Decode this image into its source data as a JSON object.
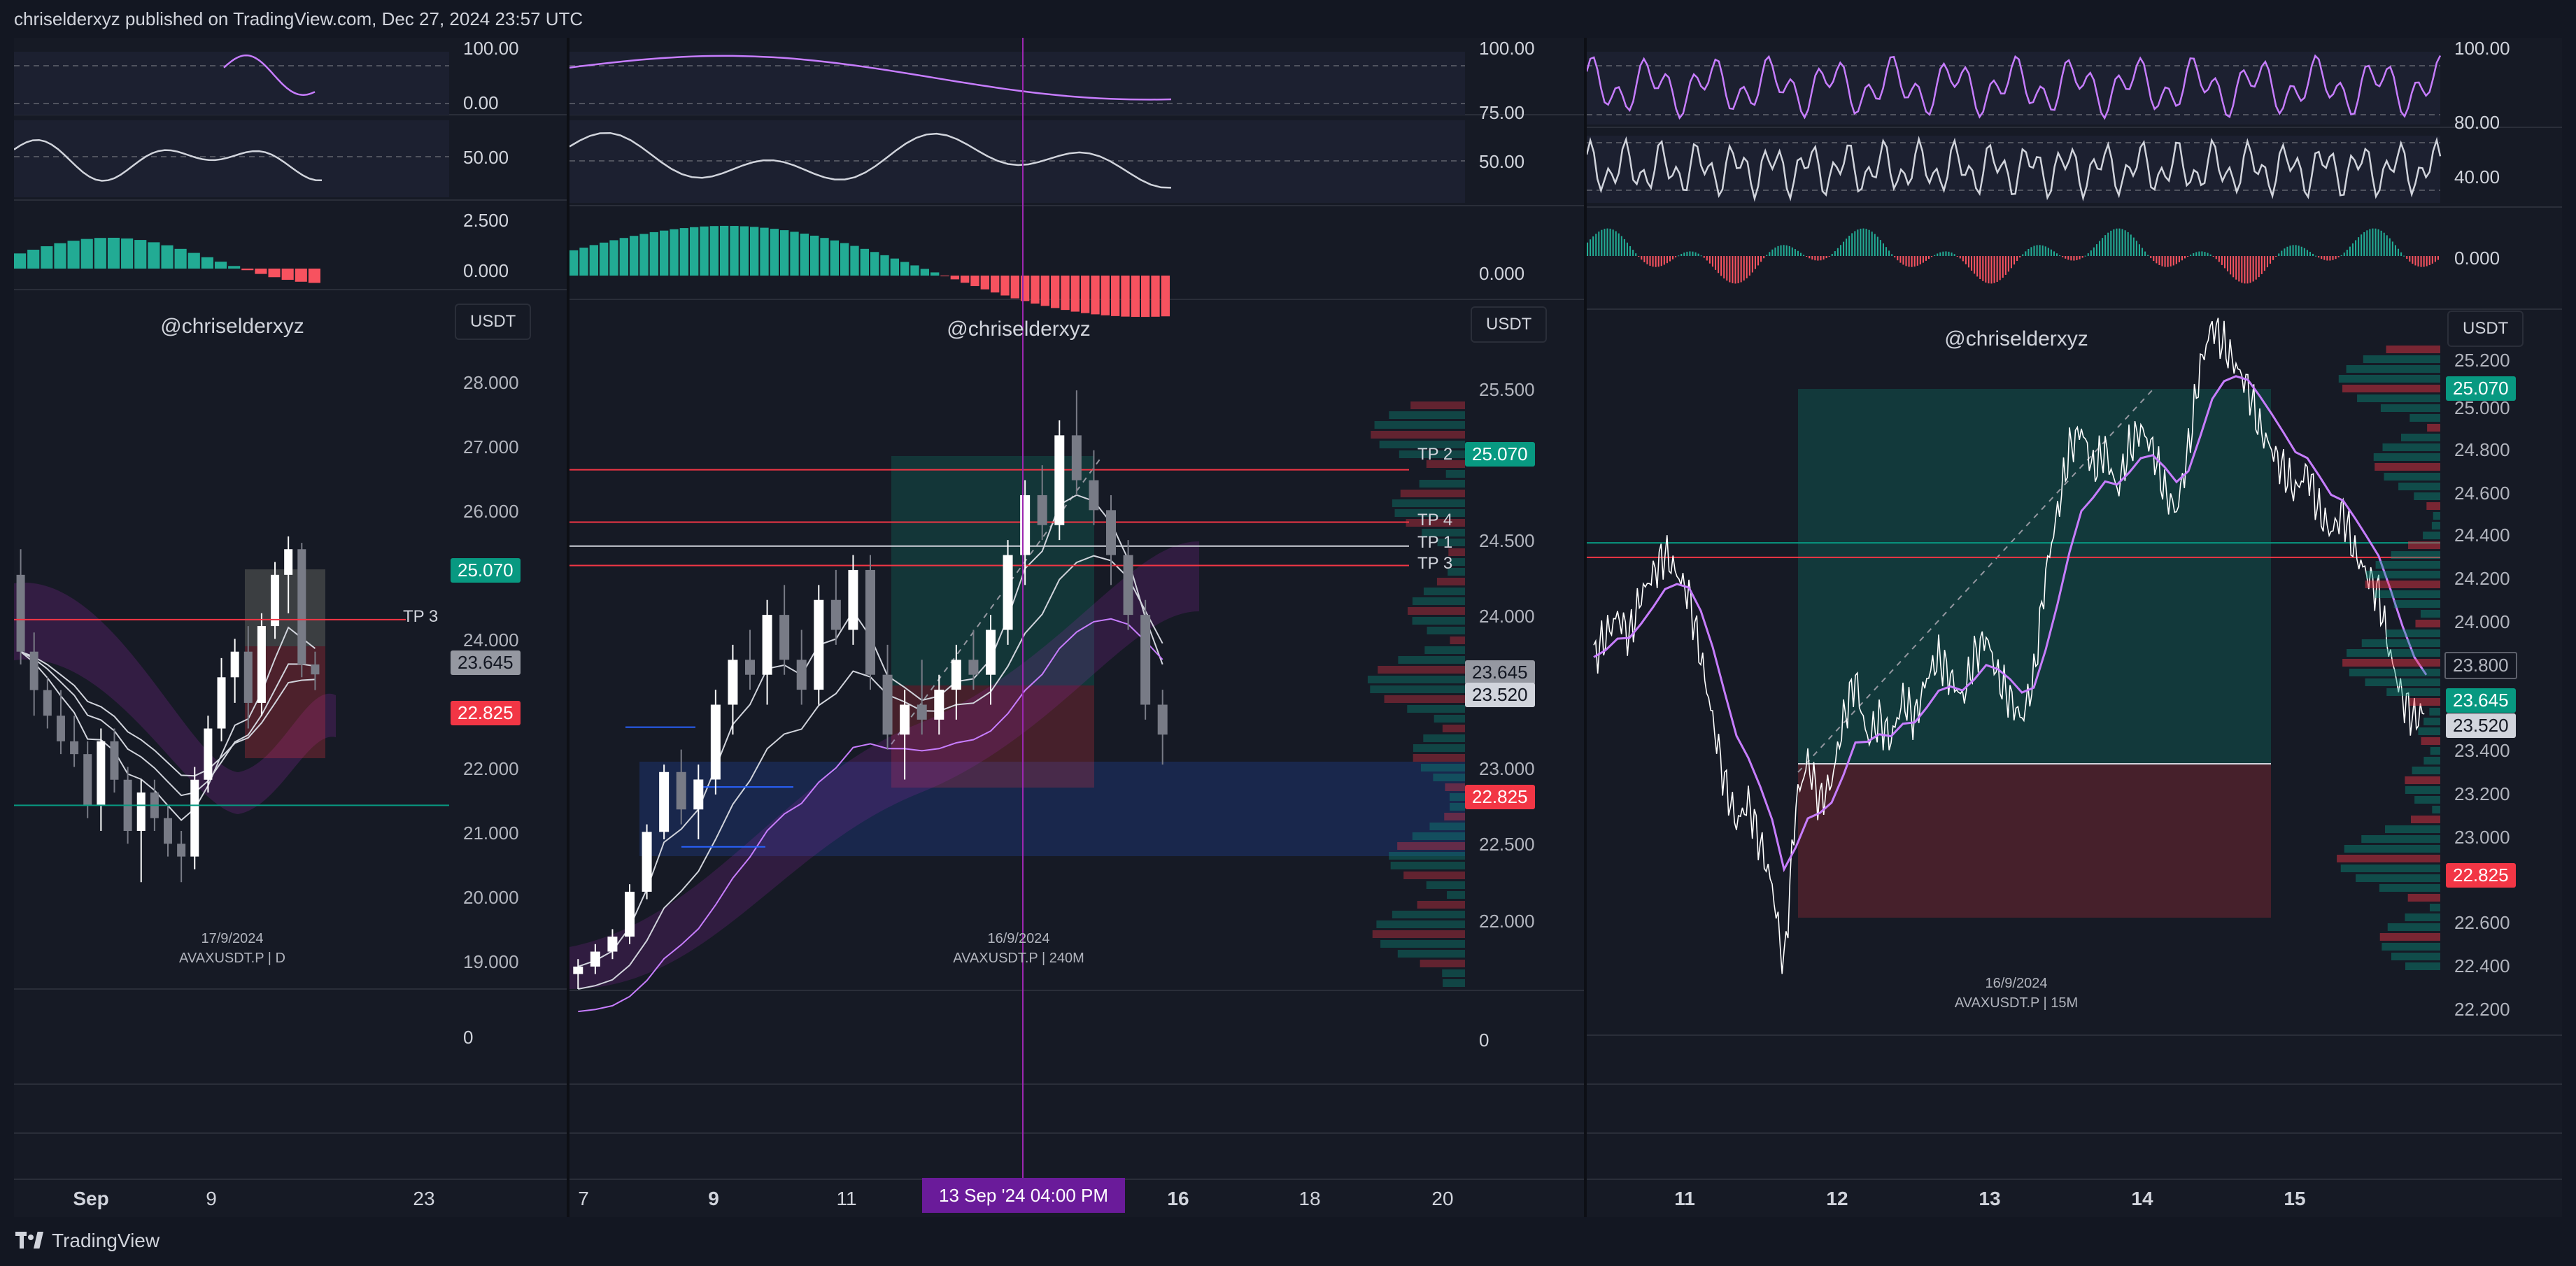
{
  "header": {
    "publisher_text": "chriselderxyz published on TradingView.com, Dec 27, 2024 23:57 UTC"
  },
  "footer": {
    "brand": "TradingView"
  },
  "colors": {
    "bull": "#089981",
    "bear": "#f23645",
    "rsi": "#c77dff",
    "background": "#131722"
  },
  "panels": [
    {
      "id": "daily",
      "watermark": "@chriselderxyz",
      "date_label": "17/9/2024",
      "symbol_label": "AVAXUSDT.P | D",
      "currency_button": "USDT",
      "osc1_levels": [
        "100.00",
        "0.00"
      ],
      "osc2_levels": [
        "50.00"
      ],
      "osc3_levels": [
        "2.500",
        "0.000"
      ],
      "price_levels": [
        "28.000",
        "27.000",
        "26.000",
        "24.000",
        "22.000",
        "21.000",
        "20.000",
        "19.000"
      ],
      "price_tags": {
        "upper": "25.070",
        "current": "23.645",
        "lower": "22.825"
      },
      "tp_labels": [
        "TP 3"
      ],
      "volume_zero": "0",
      "time_labels": [
        "Sep",
        "9",
        "23"
      ]
    },
    {
      "id": "h4",
      "watermark": "@chriselderxyz",
      "date_label": "16/9/2024",
      "symbol_label": "AVAXUSDT.P | 240M",
      "currency_button": "USDT",
      "osc1_levels": [
        "100.00",
        "75.00"
      ],
      "osc2_levels": [
        "50.00"
      ],
      "osc3_levels": [
        "0.000"
      ],
      "price_levels": [
        "25.500",
        "24.500",
        "24.000",
        "23.000",
        "22.500",
        "22.000"
      ],
      "price_tags": {
        "upper": "25.070",
        "current": "23.645",
        "second": "23.520",
        "lower": "22.825"
      },
      "tp_labels": [
        "TP 2",
        "TP 4",
        "TP 1",
        "TP 3"
      ],
      "volume_zero": "0",
      "time_labels": [
        "7",
        "9",
        "11",
        "16",
        "18",
        "20"
      ],
      "crosshair_label": "13 Sep '24   04:00 PM"
    },
    {
      "id": "m15",
      "watermark": "@chriselderxyz",
      "date_label": "16/9/2024",
      "symbol_label": "AVAXUSDT.P | 15M",
      "currency_button": "USDT",
      "osc1_levels": [
        "100.00"
      ],
      "osc2_levels": [
        "80.00",
        "40.00"
      ],
      "osc3_levels": [
        "0.000"
      ],
      "price_levels": [
        "25.200",
        "25.000",
        "24.800",
        "24.600",
        "24.400",
        "24.200",
        "24.000",
        "23.400",
        "23.200",
        "23.000",
        "22.600",
        "22.400",
        "22.200"
      ],
      "price_tags": {
        "upper": "25.070",
        "boxed": "23.800",
        "current": "23.645",
        "second": "23.520",
        "lower": "22.825"
      },
      "time_labels": [
        "11",
        "12",
        "13",
        "14",
        "15"
      ]
    }
  ],
  "chart_data": [
    {
      "type": "candlestick",
      "symbol": "AVAXUSDT.P",
      "timeframe": "D",
      "x_ticks": [
        "Sep",
        "9",
        "23"
      ],
      "ylim": [
        18.6,
        29.0
      ],
      "candles": [
        [
          25.2,
          25.6,
          23.8,
          24.0
        ],
        [
          24.0,
          24.3,
          23.0,
          23.4
        ],
        [
          23.4,
          23.6,
          22.8,
          23.0
        ],
        [
          23.0,
          23.4,
          22.4,
          22.6
        ],
        [
          22.6,
          23.0,
          22.2,
          22.4
        ],
        [
          22.4,
          22.6,
          21.4,
          21.6
        ],
        [
          21.6,
          22.8,
          21.2,
          22.6
        ],
        [
          22.6,
          22.8,
          21.8,
          22.0
        ],
        [
          22.0,
          22.2,
          21.0,
          21.2
        ],
        [
          21.2,
          22.0,
          20.4,
          21.8
        ],
        [
          21.8,
          22.0,
          21.2,
          21.4
        ],
        [
          21.4,
          21.6,
          20.8,
          21.0
        ],
        [
          21.0,
          21.2,
          20.4,
          20.8
        ],
        [
          20.8,
          22.2,
          20.6,
          22.0
        ],
        [
          22.0,
          23.0,
          21.8,
          22.8
        ],
        [
          22.8,
          23.9,
          22.6,
          23.6
        ],
        [
          23.6,
          24.2,
          23.2,
          24.0
        ],
        [
          24.0,
          24.4,
          22.8,
          23.2
        ],
        [
          23.2,
          24.6,
          23.0,
          24.4
        ],
        [
          24.4,
          25.4,
          24.2,
          25.2
        ],
        [
          25.2,
          25.8,
          24.6,
          25.6
        ],
        [
          25.6,
          25.7,
          23.6,
          23.8
        ],
        [
          23.8,
          24.0,
          23.4,
          23.645
        ]
      ]
    },
    {
      "type": "candlestick",
      "symbol": "AVAXUSDT.P",
      "timeframe": "240M",
      "x_ticks": [
        "7",
        "9",
        "11",
        "13 Sep '24 04:00 PM",
        "16",
        "18",
        "20"
      ],
      "ylim": [
        21.6,
        25.9
      ],
      "candles": [
        [
          21.7,
          21.8,
          21.6,
          21.75
        ],
        [
          21.75,
          21.9,
          21.7,
          21.85
        ],
        [
          21.85,
          22.0,
          21.8,
          21.95
        ],
        [
          21.95,
          22.3,
          21.9,
          22.25
        ],
        [
          22.25,
          22.7,
          22.2,
          22.65
        ],
        [
          22.65,
          23.1,
          22.6,
          23.05
        ],
        [
          23.05,
          23.2,
          22.7,
          22.8
        ],
        [
          22.8,
          23.1,
          22.6,
          23.0
        ],
        [
          23.0,
          23.6,
          22.9,
          23.5
        ],
        [
          23.5,
          23.9,
          23.3,
          23.8
        ],
        [
          23.8,
          24.0,
          23.6,
          23.7
        ],
        [
          23.7,
          24.2,
          23.5,
          24.1
        ],
        [
          24.1,
          24.3,
          23.7,
          23.8
        ],
        [
          23.8,
          24.0,
          23.5,
          23.6
        ],
        [
          23.6,
          24.3,
          23.5,
          24.2
        ],
        [
          24.2,
          24.4,
          23.9,
          24.0
        ],
        [
          24.0,
          24.5,
          23.9,
          24.4
        ],
        [
          24.4,
          24.5,
          23.6,
          23.7
        ],
        [
          23.7,
          23.9,
          23.2,
          23.3
        ],
        [
          23.3,
          23.6,
          23.0,
          23.5
        ],
        [
          23.5,
          23.8,
          23.3,
          23.4
        ],
        [
          23.4,
          23.7,
          23.3,
          23.6
        ],
        [
          23.6,
          23.9,
          23.4,
          23.8
        ],
        [
          23.8,
          24.0,
          23.6,
          23.7
        ],
        [
          23.7,
          24.1,
          23.5,
          24.0
        ],
        [
          24.0,
          24.6,
          23.9,
          24.5
        ],
        [
          24.5,
          25.0,
          24.3,
          24.9
        ],
        [
          24.9,
          25.1,
          24.6,
          24.7
        ],
        [
          24.7,
          25.4,
          24.6,
          25.3
        ],
        [
          25.3,
          25.6,
          24.9,
          25.0
        ],
        [
          25.0,
          25.2,
          24.7,
          24.8
        ],
        [
          24.8,
          24.9,
          24.3,
          24.5
        ],
        [
          24.5,
          24.6,
          24.0,
          24.1
        ],
        [
          24.1,
          24.2,
          23.4,
          23.5
        ],
        [
          23.5,
          23.6,
          23.1,
          23.3
        ]
      ]
    },
    {
      "type": "line",
      "symbol": "AVAXUSDT.P",
      "timeframe": "15M",
      "x_ticks": [
        "11",
        "12",
        "13",
        "14",
        "15"
      ],
      "ylim": [
        22.1,
        25.4
      ],
      "x": [
        0,
        1,
        2,
        3,
        4,
        5,
        6,
        7,
        8,
        9,
        10,
        11,
        12,
        13,
        14,
        15,
        16,
        17,
        18,
        19,
        20,
        21,
        22,
        23,
        24,
        25,
        26,
        27,
        28,
        29,
        30,
        31,
        32,
        33,
        34,
        35,
        36,
        37,
        38,
        39,
        40,
        41,
        42,
        43,
        44,
        45,
        46,
        47,
        48,
        49,
        50,
        51,
        52,
        53,
        54,
        55,
        56,
        57,
        58,
        59,
        60,
        61,
        62,
        63,
        64,
        65,
        66,
        67,
        68,
        69,
        70
      ],
      "y": [
        23.9,
        24.0,
        24.1,
        24.0,
        24.2,
        24.3,
        24.4,
        24.3,
        24.2,
        23.9,
        23.6,
        23.3,
        23.1,
        23.2,
        23.0,
        22.8,
        22.4,
        23.2,
        23.4,
        23.2,
        23.3,
        23.6,
        23.8,
        23.5,
        23.6,
        23.5,
        23.7,
        23.6,
        23.8,
        23.9,
        23.8,
        23.7,
        23.9,
        24.0,
        23.8,
        23.7,
        23.6,
        23.8,
        24.3,
        24.6,
        24.9,
        25.0,
        24.8,
        24.9,
        24.7,
        24.9,
        25.0,
        24.9,
        24.7,
        24.6,
        24.9,
        25.3,
        25.5,
        25.4,
        25.3,
        25.2,
        25.0,
        24.9,
        24.8,
        24.7,
        24.8,
        24.6,
        24.5,
        24.6,
        24.4,
        24.3,
        24.2,
        23.9,
        23.7,
        23.6,
        23.645
      ]
    }
  ]
}
